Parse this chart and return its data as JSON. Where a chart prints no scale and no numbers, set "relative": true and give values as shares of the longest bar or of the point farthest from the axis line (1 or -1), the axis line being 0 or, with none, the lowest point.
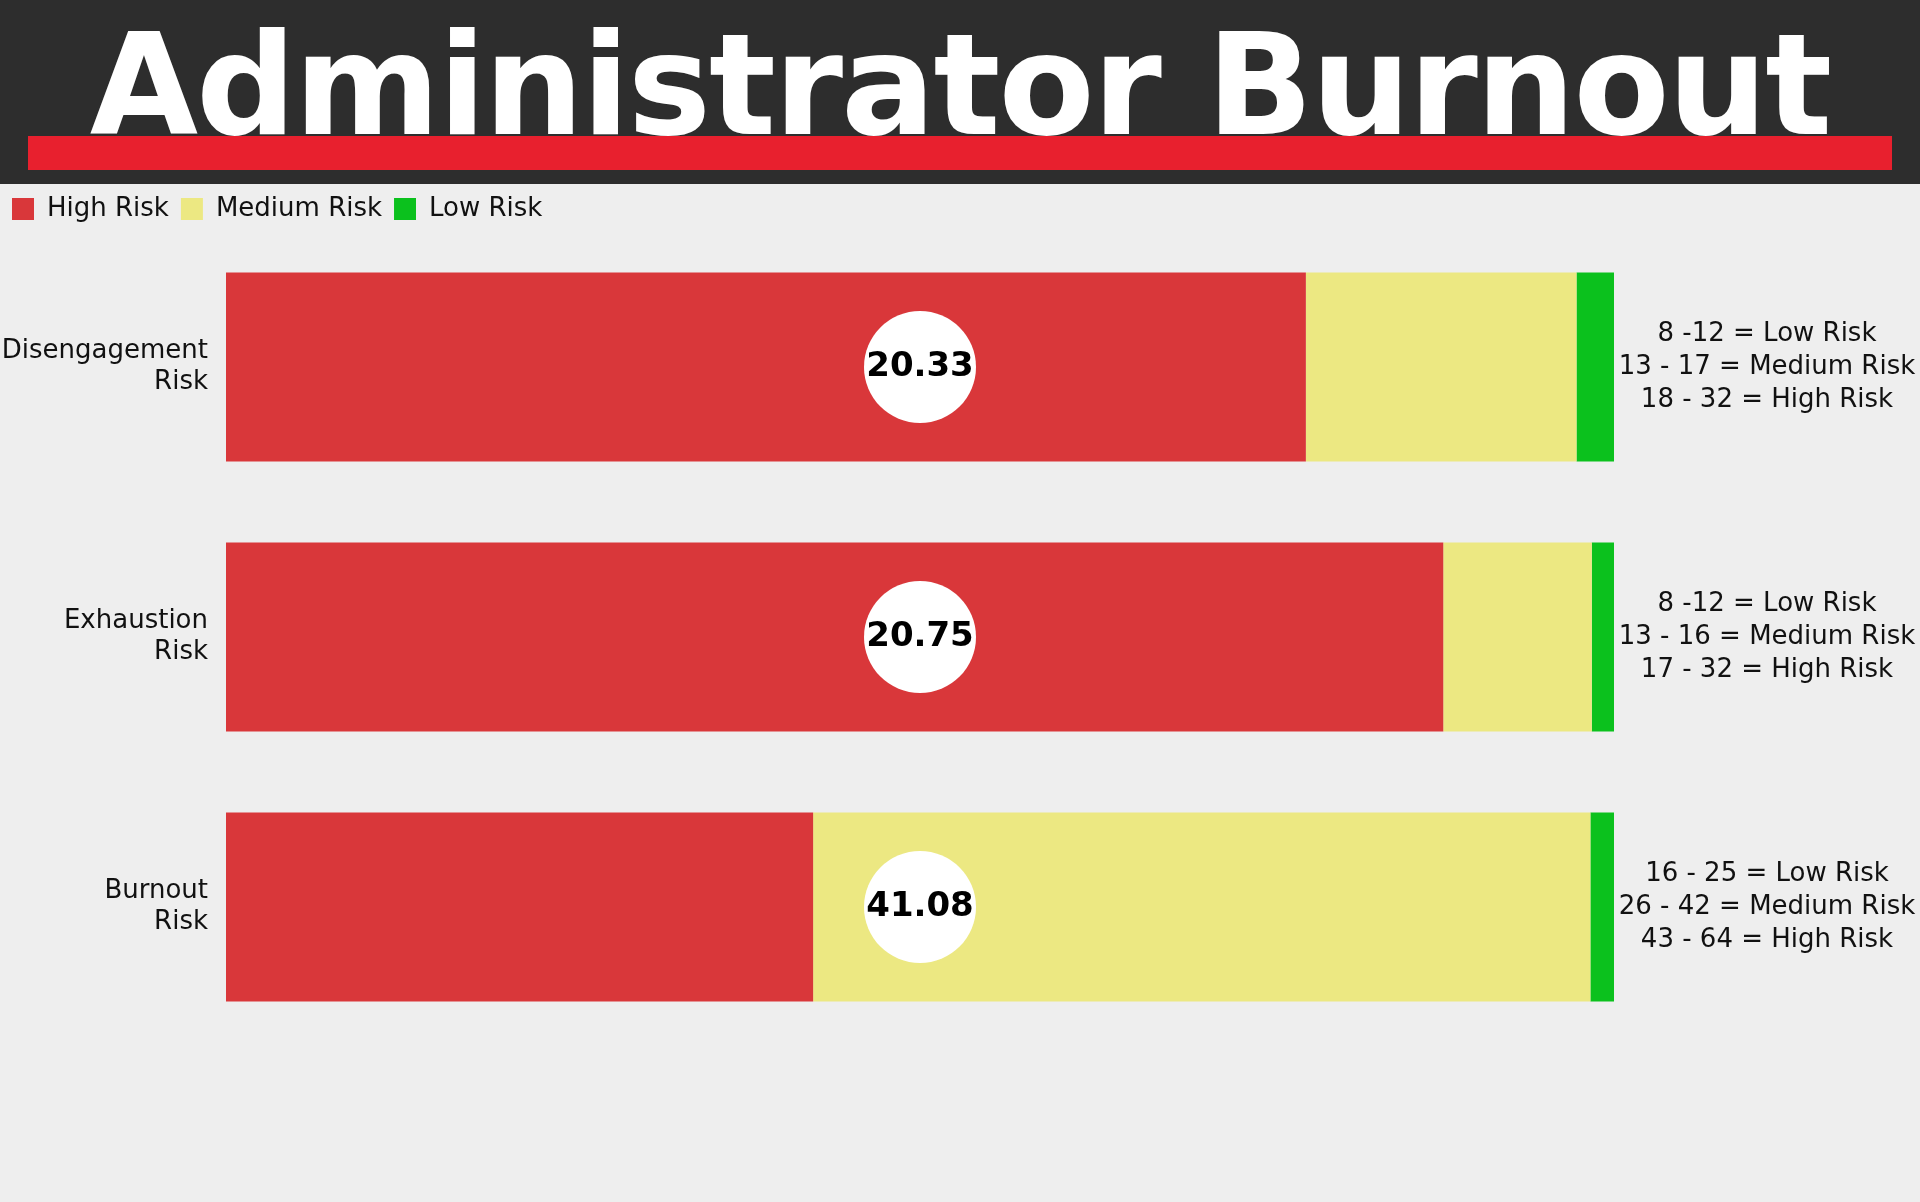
{
  "chart_data": {
    "type": "bar",
    "title": "Administrator Burnout",
    "orientation": "horizontal",
    "stacked": true,
    "relative": true,
    "categories": [
      "Disengagement Risk",
      "Exhaustion Risk",
      "Burnout Risk"
    ],
    "series": [
      {
        "name": "High Risk",
        "color": "#d9373a",
        "values": [
          0.778,
          0.877,
          0.423
        ]
      },
      {
        "name": "Medium Risk",
        "color": "#ece882",
        "values": [
          0.195,
          0.107,
          0.56
        ]
      },
      {
        "name": "Low Risk",
        "color": "#0bc11d",
        "values": [
          0.027,
          0.016,
          0.017
        ]
      }
    ],
    "legend": "top left",
    "annotations": [
      "20.33",
      "20.75",
      "41.08",
      "8 -12 = Low Risk\n13 - 17 = Medium Risk\n18 - 32 = High Risk",
      "8 -12 = Low Risk\n13 - 16 = Medium Risk\n17 - 32 = High Risk",
      "16 - 25 = Low Risk\n26 - 42 = Medium Risk\n43 - 64 = High Risk"
    ]
  }
}
